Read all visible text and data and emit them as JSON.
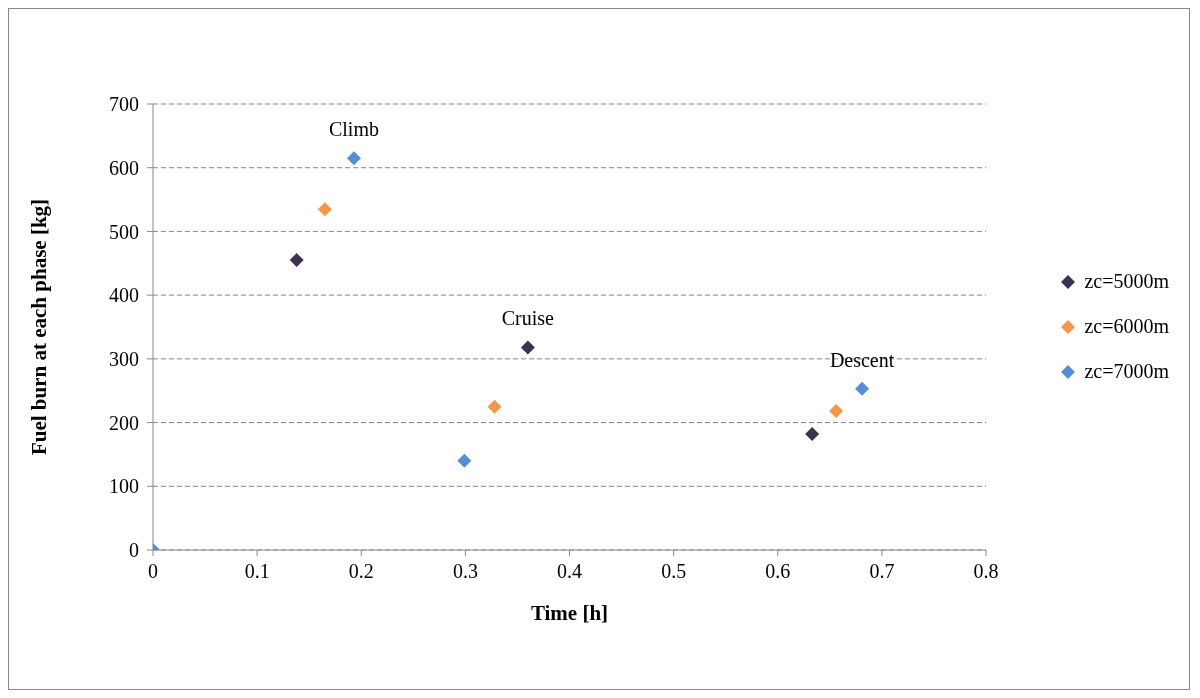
{
  "chart_data": {
    "type": "scatter",
    "xlabel": "Time [h]",
    "ylabel": "Fuel burn at each phase [kg]",
    "xlim": [
      0,
      0.8
    ],
    "xticks": [
      0,
      0.1,
      0.2,
      0.3,
      0.4,
      0.5,
      0.6,
      0.7,
      0.8
    ],
    "ylim": [
      0,
      700
    ],
    "yticks": [
      0,
      100,
      200,
      300,
      400,
      500,
      600,
      700
    ],
    "grid": "y",
    "legend": "right",
    "marker": "diamond",
    "series": [
      {
        "name": "zc=5000m",
        "color": "#3f3151",
        "x": [
          0.138,
          0.36,
          0.633
        ],
        "values": [
          455,
          318,
          182
        ]
      },
      {
        "name": "zc=6000m",
        "color": "#f79646",
        "x": [
          0.165,
          0.328,
          0.656
        ],
        "values": [
          535,
          225,
          218
        ]
      },
      {
        "name": "zc=7000m",
        "color": "#558ed5",
        "x": [
          0,
          0.193,
          0.299,
          0.681
        ],
        "values": [
          0,
          615,
          140,
          253
        ]
      }
    ],
    "annotations": [
      {
        "text": "Climb",
        "x": 0.193,
        "y": 615
      },
      {
        "text": "Cruise",
        "x": 0.36,
        "y": 318
      },
      {
        "text": "Descent",
        "x": 0.681,
        "y": 253
      }
    ]
  }
}
